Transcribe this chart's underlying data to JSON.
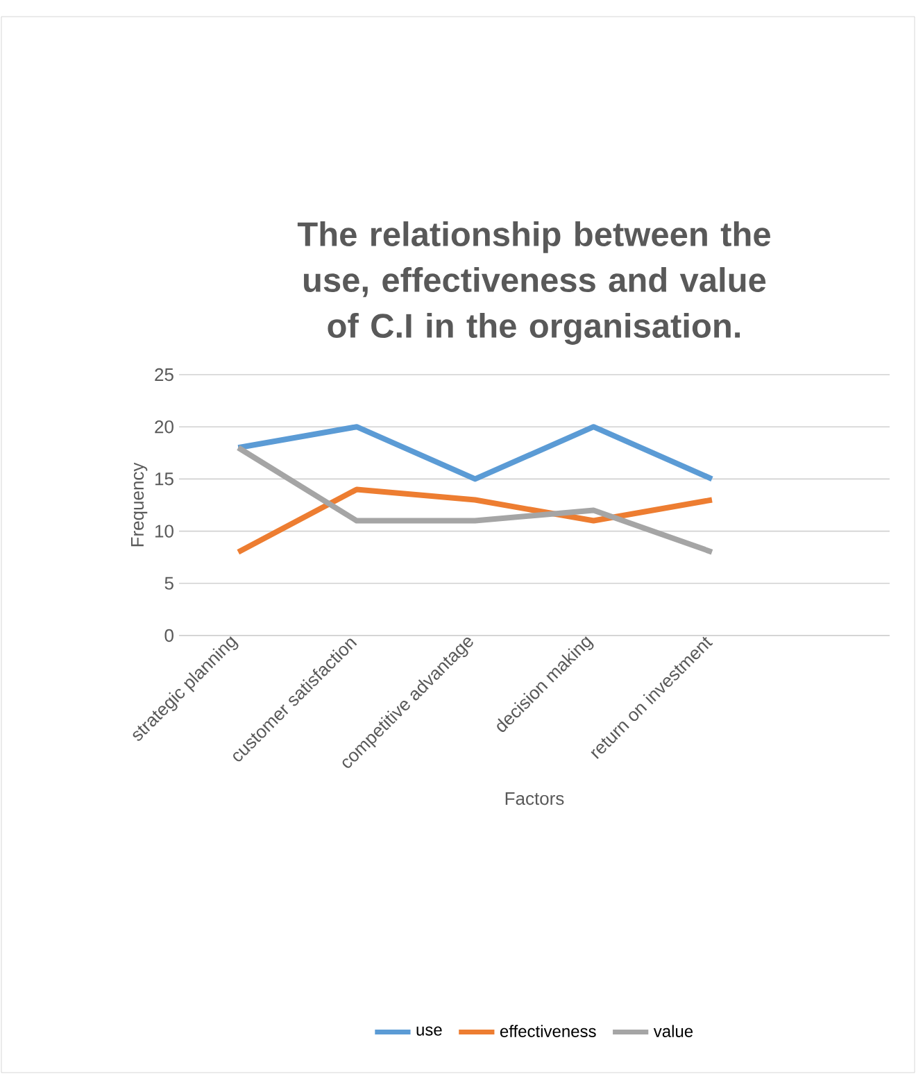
{
  "chart_data": {
    "type": "line",
    "title": "The relationship between the use, effectiveness and value of C.I in the organisation.",
    "xlabel": "Factors",
    "ylabel": "Frequency",
    "categories": [
      "strategic planning",
      "customer satisfaction",
      "competitive advantage",
      "decision making",
      "return on investment",
      null
    ],
    "series": [
      {
        "name": "use",
        "color": "#5b9bd5",
        "values": [
          18,
          20,
          15,
          20,
          15,
          null
        ]
      },
      {
        "name": "effectiveness",
        "color": "#ed7d31",
        "values": [
          8,
          14,
          13,
          11,
          13,
          null
        ]
      },
      {
        "name": "value",
        "color": "#a5a5a5",
        "values": [
          18,
          11,
          11,
          12,
          8,
          null
        ]
      }
    ],
    "ylim": [
      0,
      25
    ],
    "yticks": [
      0,
      5,
      10,
      15,
      20,
      25
    ],
    "grid": "y",
    "legend": "bottom"
  }
}
